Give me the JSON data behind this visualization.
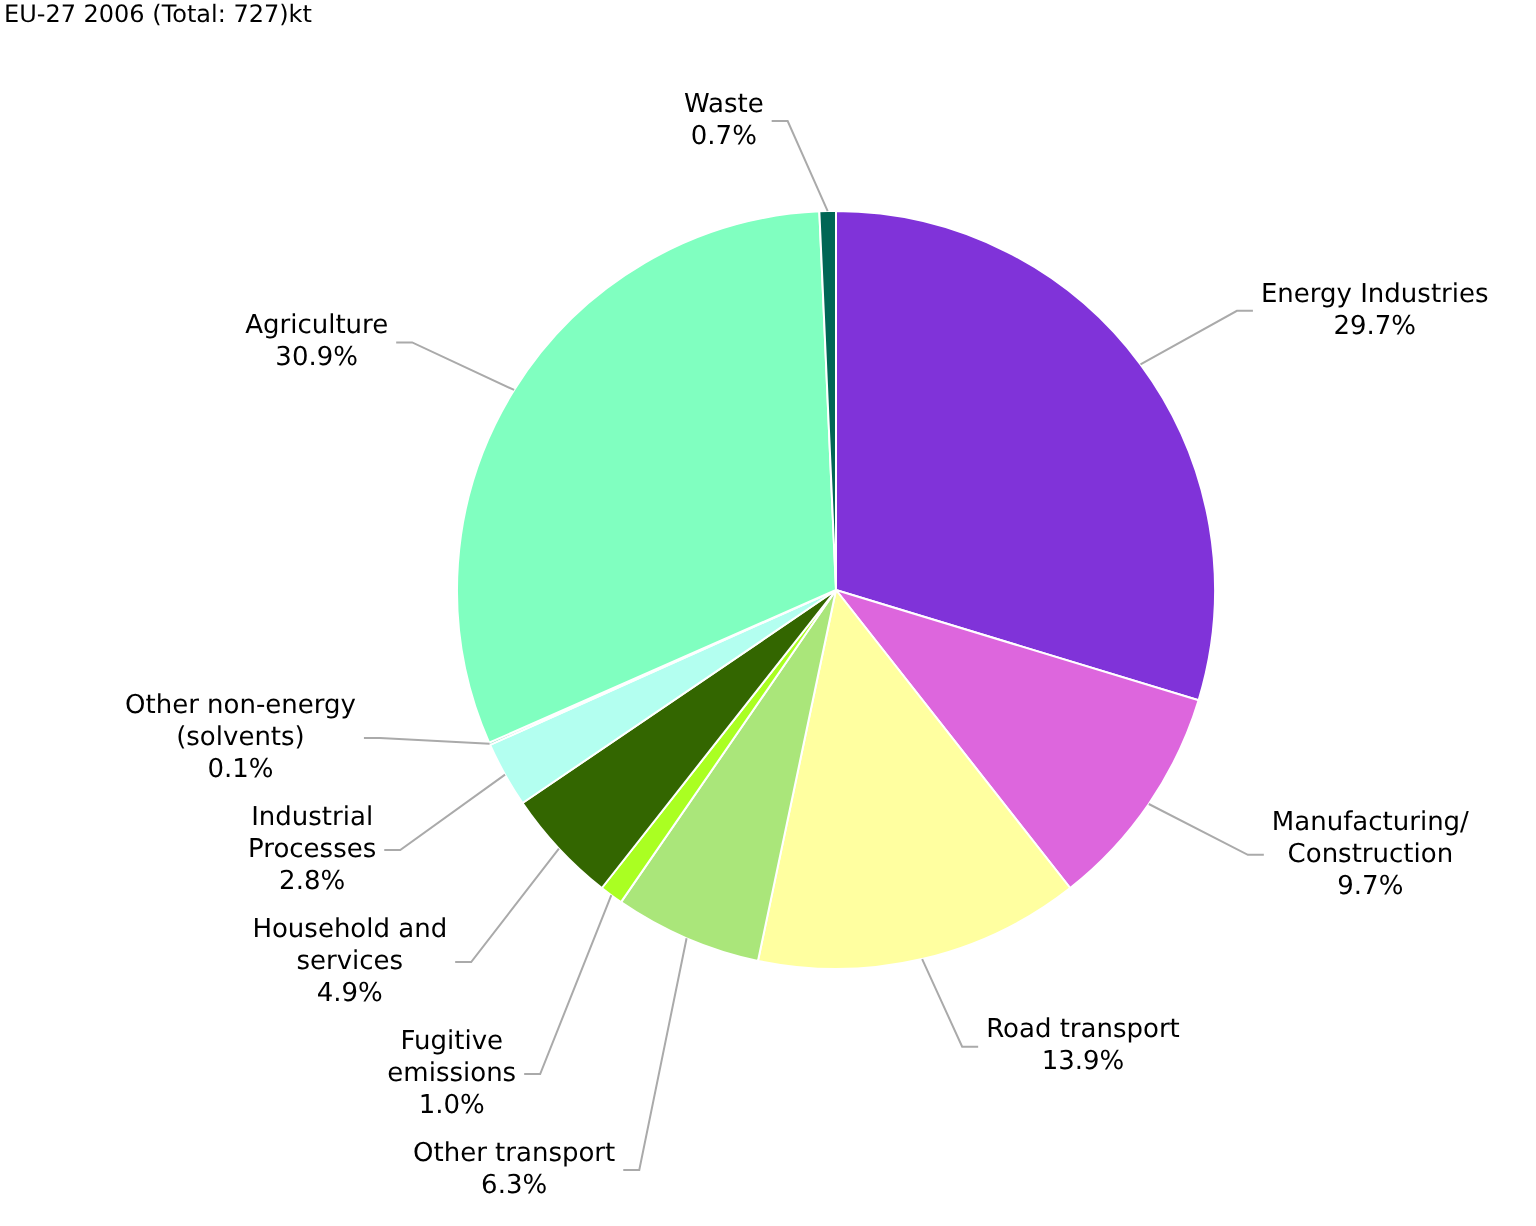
{
  "chart_data": {
    "type": "pie",
    "title": "EU-27 2006 (Total: 727)kt",
    "categories": [
      "Energy Industries",
      "Manufacturing/ Construction",
      "Road transport",
      "Other transport",
      "Fugitive emissions",
      "Household and services",
      "Industrial Processes",
      "Other non-energy (solvents)",
      "Agriculture",
      "Waste"
    ],
    "values": [
      29.7,
      9.7,
      13.9,
      6.3,
      1.0,
      4.9,
      2.8,
      0.1,
      30.9,
      0.7
    ],
    "value_labels": [
      "29.7%",
      "9.7%",
      "13.9%",
      "6.3%",
      "1.0%",
      "4.9%",
      "2.8%",
      "0.1%",
      "30.9%",
      "0.7%"
    ],
    "colors": [
      "#8033d9",
      "#dd66dd",
      "#ffffa0",
      "#aae67a",
      "#aaff22",
      "#336600",
      "#b3fff0",
      "#66ccaa",
      "#80ffc0",
      "#006655"
    ],
    "legend": false
  }
}
